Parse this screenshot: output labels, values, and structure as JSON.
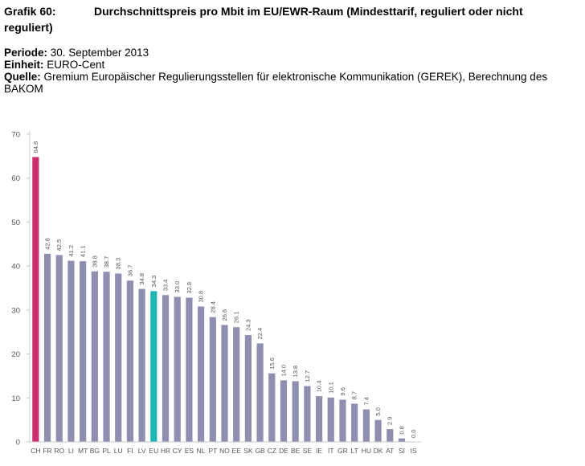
{
  "header": {
    "figure_number": "Grafik 60:",
    "title_line1": "Durchschnittspreis pro Mbit im EU/EWR-Raum (Mindesttarif, reguliert oder nicht",
    "title_line2": "reguliert)",
    "periode_label": "Periode:",
    "periode_value": "30. September 2013",
    "einheit_label": "Einheit:",
    "einheit_value": "EURO-Cent",
    "quelle_label": "Quelle:",
    "quelle_value_line1": "Gremium Europäischer Regulierungsstellen für elektronische Kommunikation (GEREK), Berechnung des",
    "quelle_value_line2": "BAKOM"
  },
  "chart_data": {
    "type": "bar",
    "categories": [
      "CH",
      "FR",
      "RO",
      "LI",
      "MT",
      "BG",
      "PL",
      "LU",
      "FI",
      "LV",
      "EU",
      "HR",
      "CY",
      "ES",
      "NL",
      "PT",
      "NO",
      "EE",
      "SK",
      "GB",
      "CZ",
      "DE",
      "BE",
      "SE",
      "IE",
      "IT",
      "GR",
      "LT",
      "HU",
      "DK",
      "AT",
      "SI",
      "IS"
    ],
    "values": [
      64.8,
      42.8,
      42.5,
      41.2,
      41.1,
      38.8,
      38.7,
      38.3,
      36.7,
      34.8,
      34.3,
      33.4,
      33.0,
      32.8,
      30.8,
      28.4,
      26.6,
      26.1,
      24.3,
      22.4,
      15.6,
      14.0,
      13.8,
      12.7,
      10.4,
      10.1,
      9.6,
      8.7,
      7.4,
      5.0,
      2.9,
      0.8,
      0.0
    ],
    "value_labels": [
      "64.8",
      "42.8",
      "42.5",
      "41.2",
      "41.1",
      "38.8",
      "38.7",
      "38.3",
      "36.7",
      "34.8",
      "34.3",
      "33.4",
      "33.0",
      "32.8",
      "30.8",
      "28.4",
      "26.6",
      "26.1",
      "24.3",
      "22.4",
      "15.6",
      "14.0",
      "13.8",
      "12.7",
      "10.4",
      "10.1",
      "9.6",
      "8.7",
      "7.4",
      "5.0",
      "2.9",
      "0.8",
      "0.0"
    ],
    "ylim": [
      0,
      70
    ],
    "yticks": [
      0,
      10,
      20,
      30,
      40,
      50,
      60,
      70
    ],
    "grid": false,
    "legend": "none",
    "colors": {
      "default": "#8e8fb0",
      "highlight_ch": "#cc2f6f",
      "highlight_eu": "#22b5b5",
      "axis": "#c8c8c8",
      "tick_label": "#555555",
      "value_label": "#555555"
    }
  }
}
